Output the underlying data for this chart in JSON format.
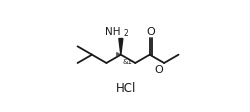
{
  "bg_color": "#ffffff",
  "line_color": "#1a1a1a",
  "text_color": "#1a1a1a",
  "fig_width": 2.5,
  "fig_height": 1.13,
  "dpi": 100,
  "hcl_label": "HCl",
  "nh2_label": "NH",
  "nh2_sub": "2",
  "o_carbonyl": "O",
  "o_ester": "O",
  "stereo_label": "&1",
  "bond_lw": 1.3,
  "step": 1.0
}
